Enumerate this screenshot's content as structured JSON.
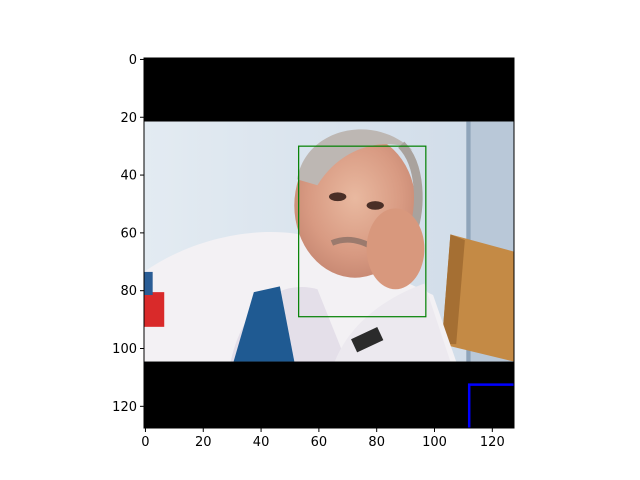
{
  "chart_data": {
    "type": "image",
    "title": "",
    "xlabel": "",
    "ylabel": "",
    "xlim": [
      -0.5,
      127.5
    ],
    "ylim": [
      127.5,
      -0.5
    ],
    "x_ticks": [
      0,
      20,
      40,
      60,
      80,
      100,
      120
    ],
    "y_ticks": [
      0,
      20,
      40,
      60,
      80,
      100,
      120
    ],
    "grid": false,
    "image": {
      "description_hidden": true,
      "letterbox_top_rows": [
        0,
        22
      ],
      "letterbox_bottom_rows": [
        105,
        128
      ],
      "letterbox_color": "#000000"
    },
    "annotations": [
      {
        "name": "face-box",
        "shape": "rectangle",
        "x": [
          53,
          97
        ],
        "y": [
          30,
          89
        ],
        "color": "#008000"
      },
      {
        "name": "corner-mark",
        "shape": "polyline",
        "points": [
          [
            112,
            127.5
          ],
          [
            112,
            112.5
          ],
          [
            127.5,
            112.5
          ]
        ],
        "color": "#0000ff"
      }
    ]
  }
}
